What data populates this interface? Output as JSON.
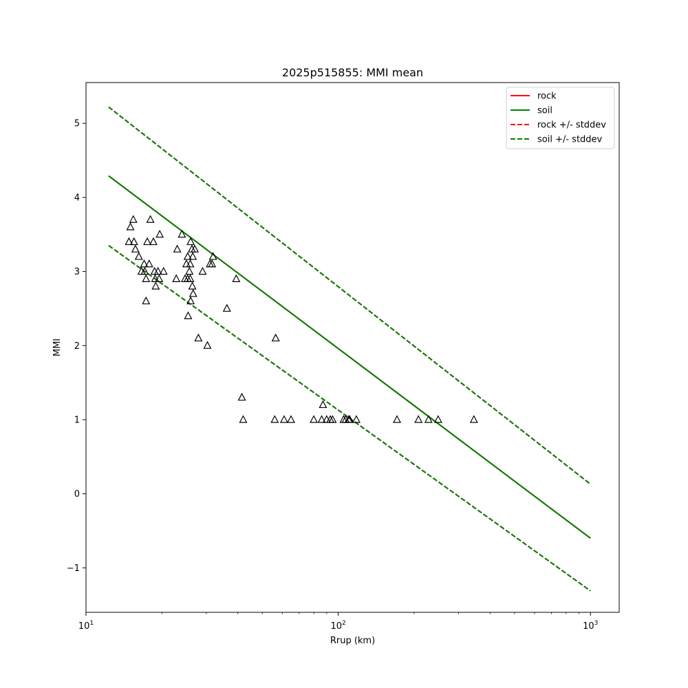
{
  "chart_data": {
    "type": "scatter",
    "title": "2025p515855: MMI mean",
    "xlabel": "Rrup (km)",
    "ylabel": "MMI",
    "xscale": "log",
    "xlim": [
      10,
      1300
    ],
    "ylim": [
      -1.6,
      5.55
    ],
    "x_ticks": [
      {
        "value": 10,
        "base": "10",
        "exp": "1"
      },
      {
        "value": 100,
        "base": "10",
        "exp": "2"
      },
      {
        "value": 1000,
        "base": "10",
        "exp": "3"
      }
    ],
    "y_ticks": [
      {
        "value": -1,
        "label": "−1"
      },
      {
        "value": 0,
        "label": "0"
      },
      {
        "value": 1,
        "label": "1"
      },
      {
        "value": 2,
        "label": "2"
      },
      {
        "value": 3,
        "label": "3"
      },
      {
        "value": 4,
        "label": "4"
      },
      {
        "value": 5,
        "label": "5"
      }
    ],
    "grid": false,
    "legend_position": "top-right",
    "series": [
      {
        "name": "rock",
        "color": "#ff0000",
        "style": "solid",
        "x": [
          12.3,
          1000
        ],
        "y": [
          4.29,
          -0.6
        ]
      },
      {
        "name": "soil",
        "color": "#008000",
        "style": "solid",
        "x": [
          12.3,
          1000
        ],
        "y": [
          4.29,
          -0.6
        ]
      },
      {
        "name": "rock +/- stddev",
        "color": "#ff0000",
        "style": "dashed",
        "x": [
          12.3,
          1000
        ],
        "y_upper": [
          5.22,
          0.13
        ],
        "y_lower": [
          3.35,
          -1.31
        ]
      },
      {
        "name": "soil +/- stddev",
        "color": "#008000",
        "style": "dashed",
        "x": [
          12.3,
          1000
        ],
        "y_upper": [
          5.22,
          0.13
        ],
        "y_lower": [
          3.35,
          -1.31
        ]
      }
    ],
    "observations": {
      "marker": "triangle-open",
      "color": "#000000",
      "points": [
        [
          14.8,
          3.4
        ],
        [
          15.0,
          3.6
        ],
        [
          15.4,
          3.7
        ],
        [
          15.5,
          3.4
        ],
        [
          15.7,
          3.3
        ],
        [
          16.2,
          3.2
        ],
        [
          16.6,
          3.0
        ],
        [
          17.0,
          3.1
        ],
        [
          17.1,
          3.0
        ],
        [
          17.3,
          2.9
        ],
        [
          17.3,
          2.6
        ],
        [
          17.5,
          3.4
        ],
        [
          17.8,
          3.1
        ],
        [
          18.0,
          3.7
        ],
        [
          18.5,
          3.4
        ],
        [
          18.7,
          3.0
        ],
        [
          18.8,
          2.9
        ],
        [
          18.9,
          2.8
        ],
        [
          19.3,
          3.0
        ],
        [
          19.5,
          2.9
        ],
        [
          19.6,
          3.5
        ],
        [
          20.3,
          3.0
        ],
        [
          22.8,
          2.9
        ],
        [
          23.0,
          3.3
        ],
        [
          24.0,
          3.5
        ],
        [
          24.7,
          2.9
        ],
        [
          25.0,
          3.1
        ],
        [
          25.3,
          3.2
        ],
        [
          25.3,
          2.9
        ],
        [
          25.4,
          2.4
        ],
        [
          25.7,
          3.0
        ],
        [
          25.9,
          2.9
        ],
        [
          25.9,
          3.1
        ],
        [
          26.0,
          3.4
        ],
        [
          26.0,
          2.6
        ],
        [
          26.3,
          3.3
        ],
        [
          26.4,
          2.8
        ],
        [
          26.5,
          3.2
        ],
        [
          26.6,
          2.7
        ],
        [
          27.0,
          3.3
        ],
        [
          27.9,
          2.1
        ],
        [
          29.0,
          3.0
        ],
        [
          30.3,
          2.0
        ],
        [
          31.0,
          3.1
        ],
        [
          31.6,
          3.1
        ],
        [
          31.9,
          3.2
        ],
        [
          36.2,
          2.5
        ],
        [
          39.4,
          2.9
        ],
        [
          41.5,
          1.3
        ],
        [
          42.0,
          1.0
        ],
        [
          56.0,
          1.0
        ],
        [
          56.5,
          2.1
        ],
        [
          61.0,
          1.0
        ],
        [
          65.0,
          1.0
        ],
        [
          80.0,
          1.0
        ],
        [
          86.0,
          1.0
        ],
        [
          87.0,
          1.2
        ],
        [
          90.0,
          1.0
        ],
        [
          93.0,
          1.0
        ],
        [
          95.0,
          1.0
        ],
        [
          105.0,
          1.0
        ],
        [
          107.0,
          1.0
        ],
        [
          110.0,
          1.0
        ],
        [
          111.0,
          1.0
        ],
        [
          118.0,
          1.0
        ],
        [
          171.0,
          1.0
        ],
        [
          208.0,
          1.0
        ],
        [
          228.0,
          1.0
        ],
        [
          249.0,
          1.0
        ],
        [
          345.0,
          1.0
        ]
      ]
    }
  }
}
